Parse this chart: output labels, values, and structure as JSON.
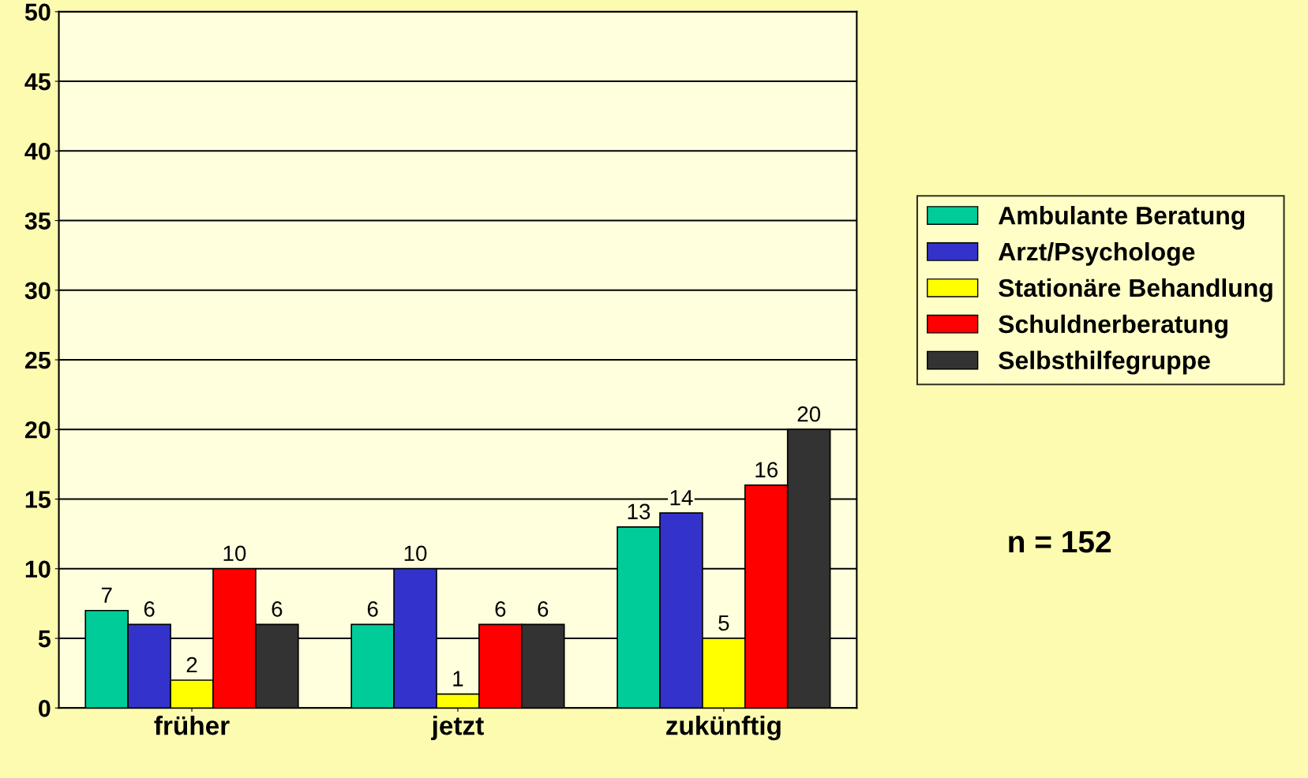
{
  "chart_data": {
    "type": "bar",
    "categories": [
      "früher",
      "jetzt",
      "zukünftig"
    ],
    "series": [
      {
        "name": "Ambulante Beratung",
        "color": "#00cc99",
        "values": [
          7,
          6,
          13
        ]
      },
      {
        "name": "Arzt/Psychologe",
        "color": "#3333cc",
        "values": [
          6,
          10,
          14
        ]
      },
      {
        "name": "Stationäre Behandlung",
        "color": "#ffff00",
        "values": [
          2,
          1,
          5
        ]
      },
      {
        "name": "Schuldnerberatung",
        "color": "#ff0000",
        "values": [
          10,
          6,
          16
        ]
      },
      {
        "name": "Selbsthilfegruppe",
        "color": "#333333",
        "values": [
          6,
          6,
          20
        ]
      }
    ],
    "ylim": [
      0,
      50
    ],
    "yticks": [
      0,
      5,
      10,
      15,
      20,
      25,
      30,
      35,
      40,
      45,
      50
    ],
    "grid": "y",
    "legend": "right",
    "data_labels": true,
    "annotations": [
      "n = 152"
    ]
  }
}
